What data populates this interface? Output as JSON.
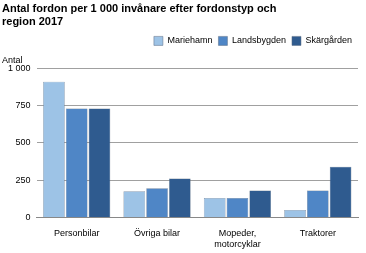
{
  "chart_data": {
    "type": "bar",
    "title": "Antal fordon per 1 000 invånare efter fordonstyp och region 2017",
    "ylabel": "Antal",
    "categories": [
      "Personbilar",
      "Övriga bilar",
      "Mopeder, motorcyklar",
      "Traktorer"
    ],
    "series": [
      {
        "name": "Mariehamn",
        "color": "#9dc3e6",
        "values": [
          910,
          175,
          130,
          50
        ]
      },
      {
        "name": "Landsbygden",
        "color": "#4f86c6",
        "values": [
          730,
          195,
          130,
          180
        ]
      },
      {
        "name": "Skärgården",
        "color": "#2f5b8f",
        "values": [
          730,
          260,
          180,
          340
        ]
      }
    ],
    "ylim": [
      0,
      1000
    ],
    "yticks": [
      0,
      250,
      500,
      750,
      {
        "value": 1000,
        "label": "1 000"
      }
    ],
    "grid": true,
    "legend": "top"
  }
}
